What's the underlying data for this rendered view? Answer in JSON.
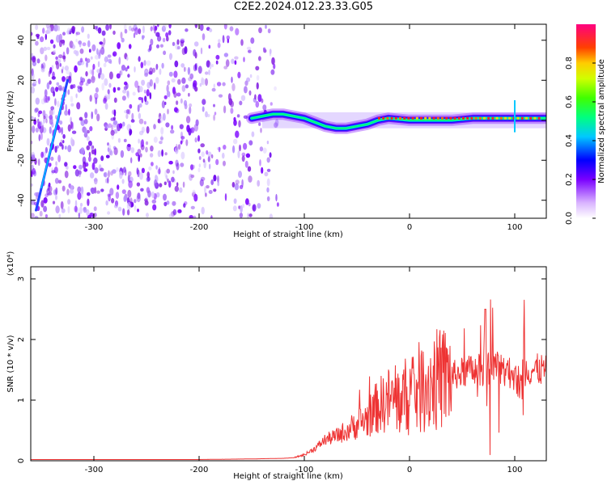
{
  "title": "C2E2.2024.012.23.33.G05",
  "chart_data": [
    {
      "type": "heatmap",
      "xlabel": "Height of straight line (km)",
      "ylabel": "Frequency (Hz)",
      "xlim": [
        -360,
        130
      ],
      "ylim": [
        -49,
        48
      ],
      "x_ticks": [
        "-300",
        "-200",
        "-100",
        "0",
        "100"
      ],
      "x_tick_values": [
        -300,
        -200,
        -100,
        0,
        100
      ],
      "y_ticks": [
        "-40",
        "-20",
        "0",
        "20",
        "40"
      ],
      "y_tick_values": [
        -40,
        -20,
        0,
        20,
        40
      ],
      "colorbar": {
        "label": "Normalized spectral amplitude",
        "range": [
          0,
          1
        ],
        "ticks": [
          "0.0",
          "0.2",
          "0.4",
          "0.6",
          "0.8"
        ],
        "tick_values": [
          0.0,
          0.2,
          0.4,
          0.6,
          0.8
        ]
      },
      "signal_track": {
        "x": [
          -150,
          -140,
          -130,
          -120,
          -110,
          -100,
          -90,
          -80,
          -70,
          -60,
          -50,
          -40,
          -30,
          -20,
          0,
          20,
          40,
          60,
          80,
          100,
          110,
          130
        ],
        "y": [
          1,
          2,
          3,
          3,
          2,
          1,
          -1,
          -3,
          -4,
          -4,
          -3,
          -2,
          0,
          1,
          0,
          0,
          0,
          1,
          1,
          1,
          1,
          1
        ]
      },
      "satellite_streak": {
        "x": [
          -355,
          -325
        ],
        "y": [
          -45,
          20
        ]
      }
    },
    {
      "type": "line",
      "xlabel": "Height of straight line (km)",
      "ylabel": "SNR (10 * v/v)",
      "y_multiplier": "(x10⁴)",
      "xlim": [
        -360,
        130
      ],
      "ylim": [
        0,
        3.2
      ],
      "x_ticks": [
        "-300",
        "-200",
        "-100",
        "0",
        "100"
      ],
      "x_tick_values": [
        -300,
        -200,
        -100,
        0,
        100
      ],
      "y_ticks": [
        "0",
        "1",
        "2",
        "3"
      ],
      "y_tick_values": [
        0,
        1,
        2,
        3
      ],
      "series_color": "#ee3333",
      "x": [
        -360,
        -300,
        -250,
        -200,
        -150,
        -120,
        -110,
        -100,
        -90,
        -80,
        -70,
        -60,
        -50,
        -40,
        -30,
        -20,
        -10,
        0,
        10,
        20,
        30,
        40,
        50,
        60,
        70,
        80,
        90,
        100,
        105,
        110,
        120,
        130
      ],
      "y": [
        0.02,
        0.02,
        0.02,
        0.02,
        0.03,
        0.04,
        0.05,
        0.1,
        0.2,
        0.35,
        0.4,
        0.5,
        0.6,
        0.7,
        0.9,
        1.0,
        1.0,
        1.1,
        1.2,
        1.3,
        1.35,
        1.4,
        1.45,
        1.5,
        1.5,
        1.55,
        1.5,
        1.4,
        1.2,
        1.5,
        1.5,
        1.5
      ]
    }
  ]
}
